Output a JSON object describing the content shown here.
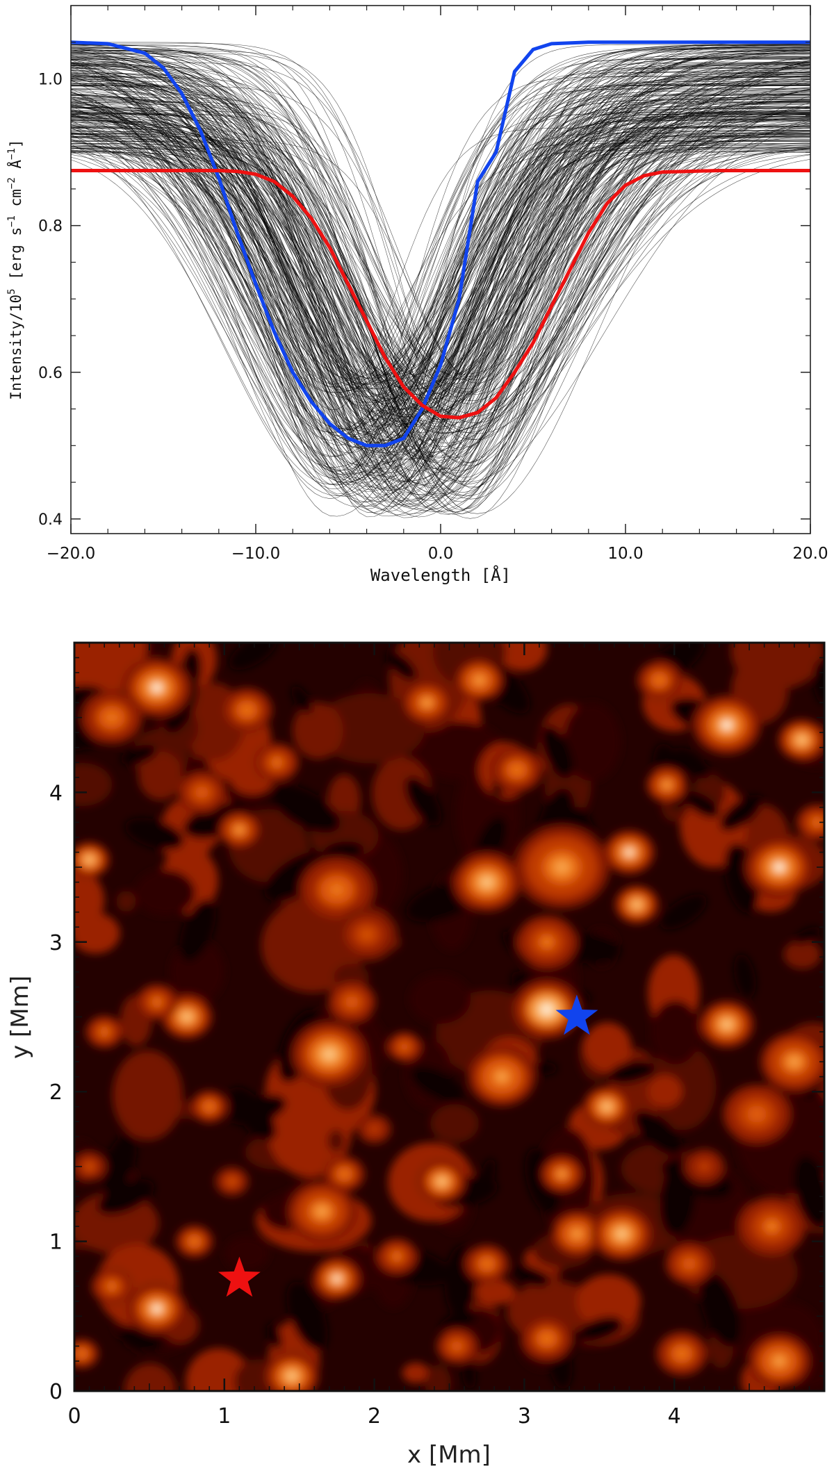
{
  "chart_data": [
    {
      "type": "line",
      "title": "",
      "xlabel": "Wavelength [Å]",
      "ylabel_parts": {
        "prefix": "Intensity/10",
        "prefix_sup": "5",
        "middle1": " [erg s",
        "sup1": "−1",
        "middle2": " cm",
        "sup2": "−2",
        "middle3": " Å",
        "sup3": "−1",
        "suffix": "]"
      },
      "xlim": [
        -20,
        20
      ],
      "ylim": [
        0.38,
        1.1
      ],
      "x_ticks": [
        -20,
        -10,
        0,
        10,
        20
      ],
      "x_tick_labels": [
        "−20.0",
        "−10.0",
        "0.0",
        "10.0",
        "20.0"
      ],
      "y_ticks": [
        0.4,
        0.6,
        0.8,
        1.0
      ],
      "y_tick_labels": [
        "0.4",
        "0.6",
        "0.8",
        "1.0"
      ],
      "grid": false,
      "background_profiles": {
        "count": 320,
        "color": "#000000",
        "continuum_range": [
          0.9,
          1.05
        ],
        "line_center_range": [
          -6.0,
          2.0
        ],
        "depth_range": [
          0.4,
          0.6
        ],
        "width_range": [
          3.5,
          6.5
        ]
      },
      "series": [
        {
          "color": "#1144ee",
          "x": [
            -20,
            -18,
            -16,
            -15,
            -14,
            -13,
            -12,
            -11,
            -10,
            -9,
            -8,
            -7,
            -6,
            -5,
            -4,
            -3,
            -2,
            -1,
            0,
            1,
            2,
            3,
            4,
            5,
            6,
            8,
            10,
            15,
            20
          ],
          "y": [
            1.05,
            1.048,
            1.035,
            1.015,
            0.98,
            0.93,
            0.865,
            0.79,
            0.72,
            0.655,
            0.6,
            0.56,
            0.53,
            0.51,
            0.5,
            0.5,
            0.51,
            0.55,
            0.61,
            0.7,
            0.86,
            0.9,
            1.01,
            1.04,
            1.048,
            1.05,
            1.05,
            1.05,
            1.05
          ]
        },
        {
          "color": "#ee1111",
          "x": [
            -20,
            -15,
            -12,
            -11,
            -10,
            -9,
            -8,
            -7,
            -6,
            -5,
            -4,
            -3,
            -2,
            -1,
            0,
            1,
            2,
            3,
            4,
            5,
            6,
            7,
            8,
            9,
            10,
            11,
            12,
            15,
            20
          ],
          "y": [
            0.875,
            0.875,
            0.875,
            0.874,
            0.87,
            0.86,
            0.84,
            0.81,
            0.77,
            0.72,
            0.67,
            0.62,
            0.58,
            0.555,
            0.54,
            0.538,
            0.545,
            0.565,
            0.6,
            0.64,
            0.69,
            0.74,
            0.79,
            0.83,
            0.855,
            0.868,
            0.873,
            0.875,
            0.875
          ]
        }
      ]
    },
    {
      "type": "heatmap",
      "title": "",
      "xlabel": "x [Mm]",
      "ylabel": "y [Mm]",
      "xlim": [
        0,
        5
      ],
      "ylim": [
        0,
        5
      ],
      "x_ticks": [
        0,
        1,
        2,
        3,
        4
      ],
      "x_tick_labels": [
        "0",
        "1",
        "2",
        "3",
        "4"
      ],
      "y_ticks": [
        0,
        1,
        2,
        3,
        4
      ],
      "y_tick_labels": [
        "0",
        "1",
        "2",
        "3",
        "4"
      ],
      "colormap": [
        "#100000",
        "#2e0200",
        "#520800",
        "#751400",
        "#9a2200",
        "#bf3a00",
        "#dd5a08",
        "#ef7e1c",
        "#f8a248",
        "#fcc886",
        "#fff0de"
      ],
      "bright_granules": [
        [
          0.55,
          4.7,
          0.2,
          0.95
        ],
        [
          0.25,
          4.5,
          0.18,
          0.7
        ],
        [
          1.15,
          4.55,
          0.15,
          0.7
        ],
        [
          1.35,
          4.2,
          0.13,
          0.65
        ],
        [
          0.85,
          4.0,
          0.14,
          0.6
        ],
        [
          1.1,
          3.75,
          0.12,
          0.75
        ],
        [
          0.1,
          3.55,
          0.12,
          0.85
        ],
        [
          1.75,
          3.35,
          0.22,
          0.7
        ],
        [
          1.95,
          3.05,
          0.18,
          0.55
        ],
        [
          2.7,
          4.75,
          0.14,
          0.8
        ],
        [
          2.35,
          4.6,
          0.14,
          0.75
        ],
        [
          2.95,
          4.15,
          0.15,
          0.7
        ],
        [
          2.75,
          3.4,
          0.2,
          0.9
        ],
        [
          3.25,
          3.5,
          0.28,
          0.75
        ],
        [
          3.15,
          3.0,
          0.18,
          0.65
        ],
        [
          3.9,
          4.75,
          0.13,
          0.7
        ],
        [
          4.35,
          4.45,
          0.2,
          0.95
        ],
        [
          4.85,
          4.35,
          0.14,
          0.85
        ],
        [
          3.95,
          4.05,
          0.12,
          0.75
        ],
        [
          3.7,
          3.6,
          0.15,
          0.95
        ],
        [
          3.75,
          3.25,
          0.13,
          0.85
        ],
        [
          4.7,
          3.5,
          0.2,
          0.95
        ],
        [
          4.95,
          3.8,
          0.12,
          0.65
        ],
        [
          0.75,
          2.5,
          0.15,
          0.85
        ],
        [
          0.55,
          2.6,
          0.12,
          0.65
        ],
        [
          0.2,
          2.4,
          0.11,
          0.65
        ],
        [
          1.7,
          2.25,
          0.22,
          0.85
        ],
        [
          1.85,
          2.6,
          0.14,
          0.6
        ],
        [
          2.2,
          2.3,
          0.1,
          0.6
        ],
        [
          3.15,
          2.55,
          0.2,
          1.0
        ],
        [
          2.85,
          2.1,
          0.2,
          0.8
        ],
        [
          3.55,
          1.9,
          0.14,
          0.9
        ],
        [
          4.35,
          2.45,
          0.16,
          0.9
        ],
        [
          4.8,
          2.2,
          0.2,
          0.75
        ],
        [
          4.55,
          1.85,
          0.2,
          0.6
        ],
        [
          1.65,
          1.2,
          0.2,
          0.75
        ],
        [
          1.8,
          1.45,
          0.12,
          0.7
        ],
        [
          1.75,
          0.75,
          0.14,
          0.95
        ],
        [
          0.9,
          1.9,
          0.11,
          0.7
        ],
        [
          0.8,
          1.0,
          0.11,
          0.7
        ],
        [
          0.55,
          0.55,
          0.17,
          0.95
        ],
        [
          0.25,
          0.7,
          0.12,
          0.65
        ],
        [
          2.45,
          1.4,
          0.14,
          0.85
        ],
        [
          3.25,
          1.45,
          0.12,
          0.75
        ],
        [
          3.35,
          1.05,
          0.15,
          0.8
        ],
        [
          3.65,
          1.05,
          0.18,
          0.9
        ],
        [
          2.75,
          0.85,
          0.13,
          0.7
        ],
        [
          2.15,
          0.9,
          0.12,
          0.65
        ],
        [
          3.15,
          0.35,
          0.15,
          0.7
        ],
        [
          4.05,
          0.25,
          0.15,
          0.7
        ],
        [
          4.7,
          0.2,
          0.18,
          0.8
        ],
        [
          1.45,
          0.1,
          0.16,
          0.85
        ],
        [
          0.05,
          0.25,
          0.1,
          0.7
        ],
        [
          2.55,
          0.3,
          0.12,
          0.6
        ],
        [
          4.1,
          0.85,
          0.14,
          0.6
        ],
        [
          4.65,
          1.1,
          0.2,
          0.65
        ],
        [
          0.1,
          1.5,
          0.1,
          0.55
        ],
        [
          1.05,
          1.4,
          0.1,
          0.55
        ],
        [
          2.0,
          1.75,
          0.1,
          0.5
        ],
        [
          4.2,
          1.5,
          0.12,
          0.5
        ]
      ],
      "markers": [
        {
          "x": 3.35,
          "y": 2.5,
          "color": "#1144ee",
          "shape": "star"
        },
        {
          "x": 1.1,
          "y": 0.75,
          "color": "#ee1111",
          "shape": "star"
        }
      ]
    }
  ]
}
